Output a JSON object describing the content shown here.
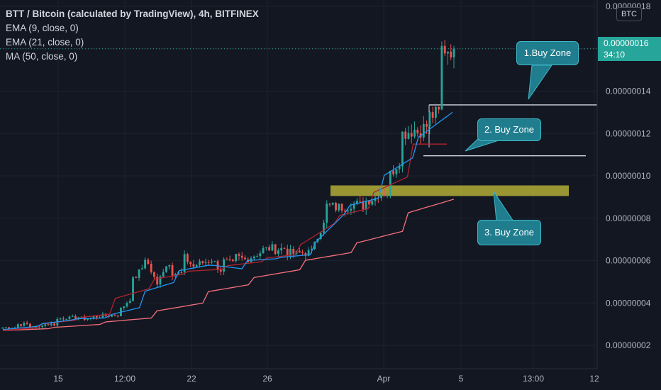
{
  "legend": {
    "title": "BTT / Bitcoin (calculated by TradingView), 4h, BITFINEX",
    "indicators": [
      "EMA (9, close, 0)",
      "EMA (21, close, 0)",
      "MA (50, close, 0)"
    ]
  },
  "currency_label": "BTC",
  "last_price": {
    "value": "0.00000016",
    "countdown": "34:10"
  },
  "colors": {
    "background": "#131722",
    "up": "#26a69a",
    "down": "#ef5350",
    "ema9": "#2196f3",
    "ema21": "#b2232f",
    "ma50": "#f5707a",
    "zone_band": "#c7c13a",
    "callout": "#1f7d8e",
    "grid": "#1e222d"
  },
  "annotations": {
    "zone1": "1.Buy Zone",
    "zone2": "2. Buy Zone",
    "zone3": "3. Buy Zone"
  },
  "chart_data": {
    "type": "candlestick",
    "title": "BTT / Bitcoin (calculated by TradingView), 4h, BITFINEX",
    "y_axis": {
      "ticks": [
        "0.00000002",
        "0.00000004",
        "0.00000006",
        "0.00000008",
        "0.00000010",
        "0.00000012",
        "0.00000014",
        "0.00000016",
        "0.00000018"
      ],
      "range": [
        9e-09,
        1.83e-07
      ]
    },
    "x_axis": {
      "ticks": [
        "15",
        "12:00",
        "22",
        "26",
        "Apr",
        "5",
        "13:00",
        "12"
      ]
    },
    "price_path": [
      [
        2.85e-08,
        2.85e-08
      ],
      [
        3e-08,
        3e-08
      ],
      [
        2.85e-08,
        2.85e-08
      ],
      [
        3e-08,
        3e-08
      ],
      [
        3.2e-08,
        3.35e-08
      ],
      [
        3.25e-08,
        3.35e-08
      ],
      [
        3.25e-08,
        3.3e-08
      ],
      [
        3.35e-08,
        3.4e-08
      ],
      [
        3.4e-08,
        3.45e-08
      ],
      [
        3.6e-08,
        4.3e-08
      ],
      [
        5e-08,
        5.8e-08
      ],
      [
        6.2e-08,
        4.8e-08
      ],
      [
        5.2e-08,
        6e-08
      ],
      [
        5.4e-08,
        5.4e-08
      ],
      [
        6.2e-08,
        5.6e-08
      ],
      [
        5.8e-08,
        6e-08
      ],
      [
        6.2e-08,
        5.5e-08
      ],
      [
        6e-08,
        5.8e-08
      ],
      [
        6.2e-08,
        6e-08
      ],
      [
        6.1e-08,
        6.4e-08
      ],
      [
        6.5e-08,
        6.6e-08
      ],
      [
        6.5e-08,
        6.6e-08
      ],
      [
        6.4e-08,
        6.3e-08
      ],
      [
        6.35e-08,
        6.4e-08
      ],
      [
        6.8e-08,
        7.8e-08
      ],
      [
        8.6e-08,
        8.5e-08
      ],
      [
        8.5e-08,
        8.6e-08
      ],
      [
        8.7e-08,
        8.6e-08
      ],
      [
        8.8e-08,
        9e-08
      ],
      [
        9.2e-08,
        9.2e-08
      ],
      [
        1e-07,
        1.1e-07
      ],
      [
        1.2e-07,
        1.22e-07
      ],
      [
        1.2e-07,
        1.24e-07
      ],
      [
        1.28e-07,
        1.3e-07
      ],
      [
        1.6e-07,
        1.6e-07
      ]
    ],
    "ema9_path": [
      [
        2.75e-08,
        2.9e-08
      ],
      [
        3e-08,
        3.2e-08
      ],
      [
        3.25e-08,
        3.3e-08
      ],
      [
        3.4e-08,
        3.8e-08
      ],
      [
        4.5e-08,
        5e-08
      ],
      [
        5.5e-08,
        5.8e-08
      ],
      [
        5.8e-08,
        5.6e-08
      ],
      [
        6e-08,
        6.1e-08
      ],
      [
        6.15e-08,
        6.3e-08
      ],
      [
        6.8e-08,
        8.4e-08
      ],
      [
        8.6e-08,
        9e-08
      ],
      [
        1e-07,
        1.1e-07
      ],
      [
        1.18e-07,
        1.3e-07
      ]
    ],
    "ema21_path": [
      [
        2.7e-08,
        2.85e-08
      ],
      [
        3e-08,
        3.2e-08
      ],
      [
        3.3e-08,
        3.5e-08
      ],
      [
        4.2e-08,
        4.7e-08
      ],
      [
        5.1e-08,
        5.4e-08
      ],
      [
        5.5e-08,
        5.6e-08
      ],
      [
        5.75e-08,
        5.95e-08
      ],
      [
        6.1e-08,
        6.3e-08
      ],
      [
        6.7e-08,
        7.8e-08
      ],
      [
        8.1e-08,
        8.5e-08
      ],
      [
        9.2e-08,
        1e-07
      ],
      [
        1.15e-07,
        1.15e-07
      ]
    ],
    "ma50_path": [
      [
        2.7e-08,
        2.8e-08
      ],
      [
        2.85e-08,
        3e-08
      ],
      [
        3.1e-08,
        3.3e-08
      ],
      [
        3.6e-08,
        4e-08
      ],
      [
        4.5e-08,
        4.9e-08
      ],
      [
        5.2e-08,
        5.6e-08
      ],
      [
        6e-08,
        6.4e-08
      ],
      [
        6.8e-08,
        7.4e-08
      ],
      [
        8.2e-08,
        8.9e-08
      ]
    ],
    "buy_zones": [
      {
        "label": "1.Buy Zone",
        "price": 1.335e-07
      },
      {
        "label": "2. Buy Zone",
        "price": 1.095e-07
      },
      {
        "label": "3. Buy Zone",
        "price_low": 9.05e-08,
        "price_high": 9.55e-08
      }
    ],
    "last_price": 1.6e-07,
    "grid": true
  }
}
